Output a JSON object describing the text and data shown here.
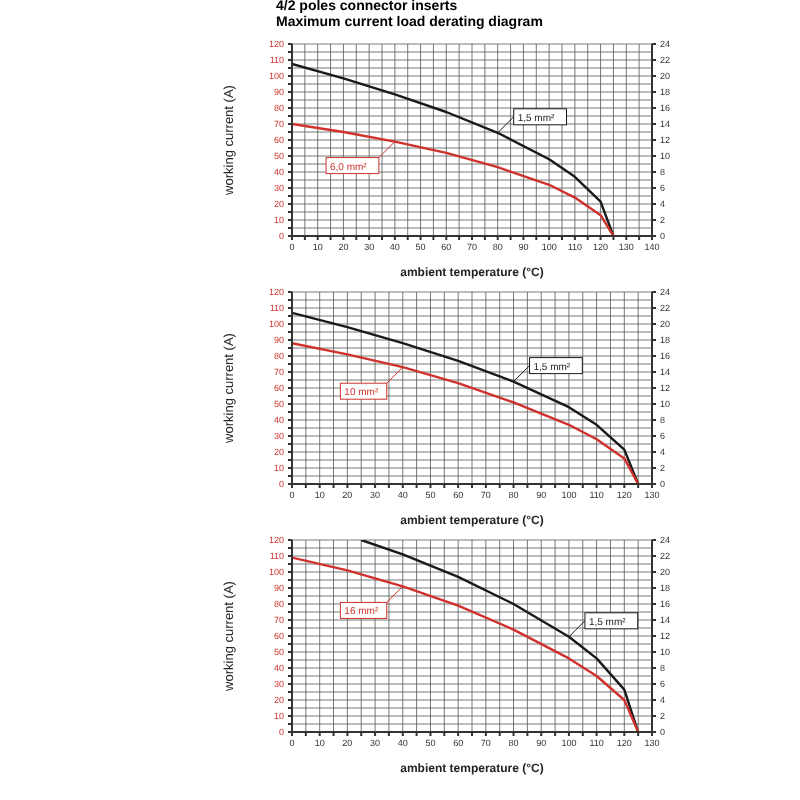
{
  "chart_data": [
    {
      "type": "line",
      "title": "4/2 poles connector inserts",
      "subtitle": "Maximum current load derating diagram",
      "xlabel": "ambient temperature (°C)",
      "ylabel": "working current (A)",
      "grid": true,
      "marker": "none",
      "line_style": "solid",
      "xlim": [
        0,
        140
      ],
      "xticks": [
        0,
        {
          "value": 5,
          "label": null
        },
        10,
        {
          "value": 15,
          "label": null
        },
        20,
        {
          "value": 25,
          "label": null
        },
        30,
        {
          "value": 35,
          "label": null
        },
        40,
        {
          "value": 45,
          "label": null
        },
        50,
        {
          "value": 55,
          "label": null
        },
        60,
        {
          "value": 65,
          "label": null
        },
        70,
        {
          "value": 75,
          "label": null
        },
        80,
        {
          "value": 85,
          "label": null
        },
        90,
        {
          "value": 95,
          "label": null
        },
        100,
        {
          "value": 105,
          "label": null
        },
        110,
        {
          "value": 115,
          "label": null
        },
        120,
        {
          "value": 125,
          "label": null
        },
        130,
        {
          "value": 135,
          "label": null
        },
        140
      ],
      "ylim": [
        0,
        120
      ],
      "yticks": [
        0,
        {
          "value": 5,
          "label": null
        },
        10,
        {
          "value": 15,
          "label": null
        },
        20,
        {
          "value": 25,
          "label": null
        },
        30,
        {
          "value": 35,
          "label": null
        },
        40,
        {
          "value": 45,
          "label": null
        },
        50,
        {
          "value": 55,
          "label": null
        },
        60,
        {
          "value": 65,
          "label": null
        },
        70,
        {
          "value": 75,
          "label": null
        },
        80,
        {
          "value": 85,
          "label": null
        },
        90,
        {
          "value": 95,
          "label": null
        },
        100,
        {
          "value": 105,
          "label": null
        },
        110,
        {
          "value": 115,
          "label": null
        },
        120
      ],
      "y2lim": [
        0,
        24
      ],
      "y2ticks": [
        0,
        2,
        4,
        6,
        8,
        10,
        12,
        14,
        16,
        18,
        20,
        22,
        24
      ],
      "series": [
        {
          "color": "#1a1a1a",
          "axis": "y2",
          "x": [
            0,
            20,
            40,
            60,
            80,
            100,
            110,
            120,
            125
          ],
          "values": [
            21.5,
            19.7,
            17.7,
            15.5,
            12.9,
            9.6,
            7.4,
            4.3,
            0
          ]
        },
        {
          "color": "#d0312d",
          "x": [
            0,
            20,
            40,
            60,
            80,
            100,
            110,
            120,
            125
          ],
          "values": [
            70,
            65,
            59,
            52,
            43,
            32,
            24,
            13,
            0
          ]
        }
      ],
      "annotations": [
        "1,5 mm²",
        "6,0 mm²"
      ]
    },
    {
      "type": "line",
      "xlabel": "ambient temperature (°C)",
      "ylabel": "working current (A)",
      "grid": true,
      "marker": "none",
      "line_style": "solid",
      "xlim": [
        0,
        130
      ],
      "xticks": [
        0,
        {
          "value": 5,
          "label": null
        },
        10,
        {
          "value": 15,
          "label": null
        },
        20,
        {
          "value": 25,
          "label": null
        },
        30,
        {
          "value": 35,
          "label": null
        },
        40,
        {
          "value": 45,
          "label": null
        },
        50,
        {
          "value": 55,
          "label": null
        },
        60,
        {
          "value": 65,
          "label": null
        },
        70,
        {
          "value": 75,
          "label": null
        },
        80,
        {
          "value": 85,
          "label": null
        },
        90,
        {
          "value": 95,
          "label": null
        },
        100,
        {
          "value": 105,
          "label": null
        },
        110,
        {
          "value": 115,
          "label": null
        },
        120,
        {
          "value": 125,
          "label": null
        },
        130
      ],
      "ylim": [
        0,
        120
      ],
      "yticks": [
        0,
        {
          "value": 5,
          "label": null
        },
        10,
        {
          "value": 15,
          "label": null
        },
        20,
        {
          "value": 25,
          "label": null
        },
        30,
        {
          "value": 35,
          "label": null
        },
        40,
        {
          "value": 45,
          "label": null
        },
        50,
        {
          "value": 55,
          "label": null
        },
        60,
        {
          "value": 65,
          "label": null
        },
        70,
        {
          "value": 75,
          "label": null
        },
        80,
        {
          "value": 85,
          "label": null
        },
        90,
        {
          "value": 95,
          "label": null
        },
        100,
        {
          "value": 105,
          "label": null
        },
        110,
        {
          "value": 115,
          "label": null
        },
        120
      ],
      "y2lim": [
        0,
        24
      ],
      "y2ticks": [
        0,
        2,
        4,
        6,
        8,
        10,
        12,
        14,
        16,
        18,
        20,
        22,
        24
      ],
      "series": [
        {
          "color": "#1a1a1a",
          "axis": "y2",
          "x": [
            0,
            20,
            40,
            60,
            80,
            100,
            110,
            120,
            125
          ],
          "values": [
            21.4,
            19.6,
            17.6,
            15.4,
            12.8,
            9.6,
            7.4,
            4.3,
            0
          ]
        },
        {
          "color": "#d0312d",
          "x": [
            0,
            20,
            40,
            60,
            80,
            100,
            110,
            120,
            125
          ],
          "values": [
            88,
            81,
            73,
            63,
            51,
            37,
            28,
            16,
            0
          ]
        }
      ],
      "annotations": [
        "1,5 mm²",
        "10 mm²"
      ]
    },
    {
      "type": "line",
      "xlabel": "ambient temperature (°C)",
      "ylabel": "working current (A)",
      "grid": true,
      "marker": "none",
      "line_style": "solid",
      "xlim": [
        0,
        130
      ],
      "xticks": [
        0,
        {
          "value": 5,
          "label": null
        },
        10,
        {
          "value": 15,
          "label": null
        },
        20,
        {
          "value": 25,
          "label": null
        },
        30,
        {
          "value": 35,
          "label": null
        },
        40,
        {
          "value": 45,
          "label": null
        },
        50,
        {
          "value": 55,
          "label": null
        },
        60,
        {
          "value": 65,
          "label": null
        },
        70,
        {
          "value": 75,
          "label": null
        },
        80,
        {
          "value": 85,
          "label": null
        },
        90,
        {
          "value": 95,
          "label": null
        },
        100,
        {
          "value": 105,
          "label": null
        },
        110,
        {
          "value": 115,
          "label": null
        },
        120,
        {
          "value": 125,
          "label": null
        },
        130
      ],
      "ylim": [
        0,
        120
      ],
      "yticks": [
        0,
        {
          "value": 5,
          "label": null
        },
        10,
        {
          "value": 15,
          "label": null
        },
        20,
        {
          "value": 25,
          "label": null
        },
        30,
        {
          "value": 35,
          "label": null
        },
        40,
        {
          "value": 45,
          "label": null
        },
        50,
        {
          "value": 55,
          "label": null
        },
        60,
        {
          "value": 65,
          "label": null
        },
        70,
        {
          "value": 75,
          "label": null
        },
        80,
        {
          "value": 85,
          "label": null
        },
        90,
        {
          "value": 95,
          "label": null
        },
        100,
        {
          "value": 105,
          "label": null
        },
        110,
        {
          "value": 115,
          "label": null
        },
        120
      ],
      "y2lim": [
        0,
        24
      ],
      "y2ticks": [
        0,
        2,
        4,
        6,
        8,
        10,
        12,
        14,
        16,
        18,
        20,
        22,
        24
      ],
      "series": [
        {
          "color": "#1a1a1a",
          "axis": "y2",
          "x": [
            25,
            40,
            60,
            80,
            100,
            110,
            120,
            125
          ],
          "values": [
            24,
            22.2,
            19.4,
            16,
            11.9,
            9.2,
            5.3,
            0
          ]
        },
        {
          "color": "#d0312d",
          "x": [
            0,
            20,
            40,
            60,
            80,
            100,
            110,
            120,
            125
          ],
          "values": [
            109,
            101,
            91,
            79,
            64,
            46,
            35,
            20,
            0
          ]
        }
      ],
      "annotations": [
        "1,5 mm²",
        "16 mm²"
      ]
    }
  ]
}
